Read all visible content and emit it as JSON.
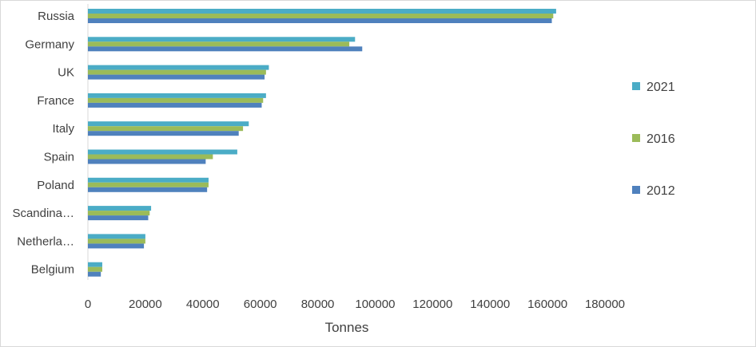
{
  "chart_data": {
    "type": "bar",
    "orientation": "horizontal",
    "categories": [
      "Russia",
      "Germany",
      "UK",
      "France",
      "Italy",
      "Spain",
      "Poland",
      "Scandina…",
      "Netherla…",
      "Belgium"
    ],
    "series": [
      {
        "name": "2021",
        "color": "#4bacc6",
        "values": [
          163000,
          93000,
          63000,
          62000,
          56000,
          52000,
          42000,
          22000,
          20000,
          5000
        ]
      },
      {
        "name": "2016",
        "color": "#9bbb59",
        "values": [
          162000,
          91000,
          62000,
          61000,
          54000,
          43500,
          42000,
          21500,
          20000,
          5000
        ]
      },
      {
        "name": "2012",
        "color": "#4f81bd",
        "values": [
          161500,
          95500,
          61500,
          60500,
          52500,
          41000,
          41500,
          21000,
          19500,
          4500
        ]
      }
    ],
    "xlabel": "Tonnes",
    "ylabel": "",
    "xlim": [
      0,
      180000
    ],
    "xticks": [
      "0",
      "20000",
      "40000",
      "60000",
      "80000",
      "100000",
      "120000",
      "140000",
      "160000",
      "180000"
    ],
    "grid": false,
    "legend_position": "right",
    "legend_order": [
      "2021",
      "2016",
      "2012"
    ]
  }
}
